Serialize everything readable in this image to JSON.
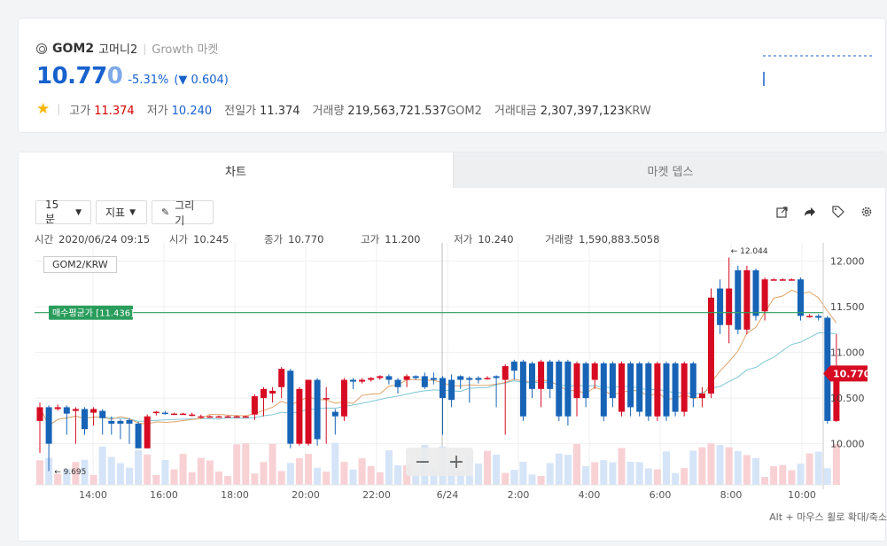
{
  "symbol": "GOM2",
  "korean_name": "고머니2",
  "market": "Growth 마켓",
  "price_main": "10.77",
  "price_last": "0",
  "change_pct": "-5.31%",
  "change_abs": "(▼ 0.604)",
  "stats": {
    "high_label": "고가",
    "high": "11.374",
    "low_label": "저가",
    "low": "10.240",
    "prev_label": "전일가",
    "prev": "11.374",
    "vol_label": "거래량",
    "vol": "219,563,721.537",
    "vol_unit": "GOM2",
    "amt_label": "거래대금",
    "amt": "2,307,397,123",
    "amt_unit": "KRW"
  },
  "tabs": [
    "차트",
    "마켓 뎁스"
  ],
  "toolbar": {
    "interval": "15 분",
    "indicator": "지표",
    "draw": "그리기"
  },
  "ohlc": {
    "time_label": "시간",
    "time": "2020/06/24 09:15",
    "open_label": "시가",
    "open": "10.245",
    "close_label": "종가",
    "close": "10.770",
    "high_label": "고가",
    "high": "11.200",
    "low_label": "저가",
    "low": "10.240",
    "vol_label": "거래량",
    "vol": "1,590,883.5058"
  },
  "pair": "GOM2/KRW",
  "avg_label": "매수평균가 [11.436]",
  "max_label": "← 12.044",
  "min_label": "← 9.695",
  "last_label": "10.770",
  "hint": "Alt + 마우스 휠로 확대/축소",
  "colors": {
    "up": "#d60a22",
    "down": "#1763b6",
    "avg": "#2a9d5c"
  },
  "chart_data": {
    "type": "candlestick",
    "x_ticks": [
      "14:00",
      "16:00",
      "18:00",
      "20:00",
      "22:00",
      "6/24",
      "2:00",
      "4:00",
      "6:00",
      "8:00",
      "10:00"
    ],
    "y_ticks": [
      "12.000",
      "11.500",
      "11.000",
      "10.500",
      "10.000"
    ],
    "ylim": [
      9.55,
      12.2
    ],
    "avg_price": 11.436,
    "max": 12.044,
    "min": 9.695,
    "last": 10.77,
    "candles": [
      [
        10.25,
        10.4,
        10.45,
        9.9
      ],
      [
        10.4,
        10.0,
        10.42,
        9.7
      ],
      [
        10.38,
        10.4,
        10.43,
        10.36
      ],
      [
        10.4,
        10.33,
        10.42,
        10.1
      ],
      [
        10.36,
        10.38,
        10.4,
        10.0
      ],
      [
        10.38,
        10.16,
        10.4,
        10.1
      ],
      [
        10.34,
        10.38,
        10.4,
        10.2
      ],
      [
        10.36,
        10.28,
        10.38,
        10.1
      ],
      [
        10.25,
        10.22,
        10.3,
        10.1
      ],
      [
        10.25,
        10.22,
        10.27,
        10.05
      ],
      [
        10.26,
        10.22,
        10.28,
        10.0
      ],
      [
        10.22,
        9.95,
        10.24,
        9.95
      ],
      [
        9.95,
        10.3,
        10.32,
        9.95
      ],
      [
        10.34,
        10.35,
        10.36,
        10.31
      ],
      [
        10.34,
        10.33,
        10.36,
        10.32
      ],
      [
        10.33,
        10.33,
        10.34,
        10.32
      ],
      [
        10.33,
        10.33,
        10.34,
        10.32
      ],
      [
        10.32,
        10.32,
        10.34,
        10.3
      ],
      [
        10.3,
        10.3,
        10.32,
        10.28
      ],
      [
        10.3,
        10.3,
        10.31,
        10.29
      ],
      [
        10.3,
        10.3,
        10.31,
        10.29
      ],
      [
        10.3,
        10.3,
        10.31,
        10.29
      ],
      [
        10.3,
        10.3,
        10.31,
        10.29
      ],
      [
        10.3,
        10.3,
        10.31,
        10.29
      ],
      [
        10.32,
        10.52,
        10.54,
        10.26
      ],
      [
        10.5,
        10.6,
        10.62,
        10.3
      ],
      [
        10.55,
        10.58,
        10.62,
        10.45
      ],
      [
        10.62,
        10.82,
        10.84,
        10.5
      ],
      [
        10.8,
        10.0,
        10.82,
        9.95
      ],
      [
        10.0,
        10.6,
        10.62,
        9.98
      ],
      [
        10.0,
        10.7,
        10.7,
        9.98
      ],
      [
        10.7,
        10.05,
        10.72,
        9.98
      ],
      [
        10.5,
        10.5,
        10.62,
        10.0
      ],
      [
        10.35,
        10.3,
        10.38,
        10.1
      ],
      [
        10.3,
        10.7,
        10.72,
        10.25
      ],
      [
        10.7,
        10.68,
        10.72,
        10.6
      ],
      [
        10.68,
        10.7,
        10.72,
        10.66
      ],
      [
        10.7,
        10.72,
        10.73,
        10.68
      ],
      [
        10.72,
        10.74,
        10.75,
        10.7
      ],
      [
        10.74,
        10.7,
        10.76,
        10.65
      ],
      [
        10.7,
        10.62,
        10.72,
        10.55
      ],
      [
        10.7,
        10.74,
        10.76,
        10.62
      ],
      [
        10.74,
        10.72,
        10.75,
        10.7
      ],
      [
        10.74,
        10.62,
        10.78,
        10.6
      ],
      [
        10.72,
        10.7,
        10.78,
        10.65
      ],
      [
        10.72,
        10.5,
        10.74,
        10.1
      ],
      [
        10.7,
        10.48,
        10.76,
        10.4
      ],
      [
        10.74,
        10.7,
        10.75,
        10.6
      ],
      [
        10.72,
        10.7,
        10.74,
        10.45
      ],
      [
        10.72,
        10.7,
        10.74,
        10.66
      ],
      [
        10.72,
        10.72,
        10.74,
        10.7
      ],
      [
        10.74,
        10.72,
        10.75,
        10.4
      ],
      [
        10.7,
        10.85,
        10.87,
        10.1
      ],
      [
        10.9,
        10.8,
        10.92,
        10.7
      ],
      [
        10.9,
        10.3,
        10.92,
        10.25
      ],
      [
        10.88,
        10.6,
        10.9,
        10.5
      ],
      [
        10.6,
        10.9,
        10.92,
        10.4
      ],
      [
        10.9,
        10.6,
        10.92,
        10.5
      ],
      [
        10.9,
        10.3,
        10.92,
        10.25
      ],
      [
        10.9,
        10.3,
        10.92,
        10.2
      ],
      [
        10.5,
        10.88,
        10.9,
        10.3
      ],
      [
        10.88,
        10.5,
        10.9,
        10.4
      ],
      [
        10.7,
        10.88,
        10.9,
        10.6
      ],
      [
        10.88,
        10.3,
        10.9,
        10.25
      ],
      [
        10.88,
        10.5,
        10.9,
        10.4
      ],
      [
        10.35,
        10.88,
        10.9,
        10.3
      ],
      [
        10.88,
        10.4,
        10.9,
        10.3
      ],
      [
        10.88,
        10.35,
        10.9,
        10.3
      ],
      [
        10.88,
        10.3,
        10.9,
        10.25
      ],
      [
        10.3,
        10.88,
        10.9,
        10.25
      ],
      [
        10.88,
        10.3,
        10.9,
        10.25
      ],
      [
        10.88,
        10.35,
        10.9,
        10.3
      ],
      [
        10.35,
        10.88,
        10.9,
        10.3
      ],
      [
        10.88,
        10.5,
        10.9,
        10.4
      ],
      [
        10.5,
        10.55,
        10.62,
        10.4
      ],
      [
        10.55,
        11.6,
        11.7,
        10.5
      ],
      [
        11.7,
        11.3,
        11.8,
        11.2
      ],
      [
        11.3,
        11.7,
        12.04,
        11.1
      ],
      [
        11.9,
        11.25,
        11.95,
        11.2
      ],
      [
        11.25,
        11.9,
        11.95,
        11.2
      ],
      [
        11.9,
        11.4,
        11.92,
        11.35
      ],
      [
        11.45,
        11.8,
        11.82,
        11.35
      ],
      [
        11.8,
        11.8,
        11.81,
        11.79
      ],
      [
        11.8,
        11.8,
        11.81,
        11.79
      ],
      [
        11.8,
        11.8,
        11.81,
        11.79
      ],
      [
        11.8,
        11.4,
        11.82,
        11.35
      ],
      [
        11.4,
        11.4,
        11.42,
        11.38
      ],
      [
        11.4,
        11.38,
        11.42,
        11.35
      ],
      [
        11.38,
        10.25,
        11.4,
        10.22
      ],
      [
        10.25,
        10.77,
        11.2,
        10.24
      ]
    ]
  }
}
